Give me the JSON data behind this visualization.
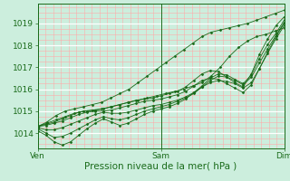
{
  "xlabel": "Pression niveau de la mer( hPa )",
  "bg_color": "#cceedd",
  "grid_color_major": "#ffffff",
  "grid_color_minor": "#ffaaaa",
  "line_color": "#1a6b1a",
  "xtick_labels": [
    "Ven",
    "Sam",
    "Dim"
  ],
  "xtick_positions": [
    0,
    48,
    96
  ],
  "ytick_positions": [
    1014,
    1015,
    1016,
    1017,
    1018,
    1019
  ],
  "ylim": [
    1013.3,
    1019.9
  ],
  "xlim": [
    0,
    96
  ],
  "series": [
    [
      1014.3,
      1014.5,
      1014.8,
      1015.0,
      1015.1,
      1015.2,
      1015.3,
      1015.4,
      1015.6,
      1015.8,
      1016.0,
      1016.3,
      1016.6,
      1016.9,
      1017.2,
      1017.5,
      1017.8,
      1018.1,
      1018.4,
      1018.6,
      1018.7,
      1018.8,
      1018.9,
      1019.0,
      1019.15,
      1019.3,
      1019.45,
      1019.6
    ],
    [
      1014.3,
      1014.45,
      1014.6,
      1014.75,
      1014.9,
      1015.0,
      1015.05,
      1015.1,
      1015.2,
      1015.3,
      1015.4,
      1015.5,
      1015.6,
      1015.7,
      1015.8,
      1015.9,
      1016.0,
      1016.15,
      1016.3,
      1016.6,
      1017.0,
      1017.5,
      1017.9,
      1018.2,
      1018.4,
      1018.5,
      1018.65,
      1018.8
    ],
    [
      1014.3,
      1014.4,
      1014.5,
      1014.65,
      1014.8,
      1014.95,
      1015.0,
      1015.05,
      1015.1,
      1015.2,
      1015.3,
      1015.4,
      1015.5,
      1015.55,
      1015.6,
      1015.7,
      1015.8,
      1015.9,
      1016.1,
      1016.4,
      1016.7,
      1016.85,
      1016.8,
      1016.55,
      1016.3,
      1016.1,
      1016.7,
      1017.6,
      1018.3,
      1018.9,
      1019.3
    ],
    [
      1014.3,
      1014.35,
      1014.45,
      1014.55,
      1014.7,
      1014.85,
      1014.95,
      1015.0,
      1015.0,
      1015.05,
      1015.15,
      1015.25,
      1015.35,
      1015.45,
      1015.5,
      1015.55,
      1015.65,
      1015.75,
      1015.9,
      1016.15,
      1016.4,
      1016.5,
      1016.45,
      1016.25,
      1016.05,
      1015.85,
      1016.2,
      1016.95,
      1017.7,
      1018.4,
      1019.0
    ],
    [
      1014.25,
      1014.15,
      1014.15,
      1014.25,
      1014.4,
      1014.55,
      1014.7,
      1014.85,
      1014.95,
      1014.9,
      1014.9,
      1014.95,
      1015.05,
      1015.15,
      1015.25,
      1015.3,
      1015.4,
      1015.5,
      1015.65,
      1015.85,
      1016.1,
      1016.3,
      1016.4,
      1016.35,
      1016.25,
      1016.05,
      1016.3,
      1016.95,
      1017.65,
      1018.3,
      1018.9
    ],
    [
      1014.2,
      1014.0,
      1013.8,
      1013.85,
      1014.0,
      1014.2,
      1014.4,
      1014.6,
      1014.75,
      1014.65,
      1014.6,
      1014.7,
      1014.85,
      1015.0,
      1015.1,
      1015.2,
      1015.3,
      1015.45,
      1015.6,
      1015.8,
      1016.1,
      1016.4,
      1016.6,
      1016.55,
      1016.4,
      1016.2,
      1016.55,
      1017.2,
      1017.85,
      1018.45,
      1019.05
    ],
    [
      1014.1,
      1013.9,
      1013.6,
      1013.45,
      1013.6,
      1013.9,
      1014.2,
      1014.45,
      1014.65,
      1014.5,
      1014.35,
      1014.45,
      1014.65,
      1014.85,
      1015.0,
      1015.1,
      1015.2,
      1015.35,
      1015.55,
      1015.85,
      1016.15,
      1016.5,
      1016.7,
      1016.65,
      1016.45,
      1016.25,
      1016.65,
      1017.4,
      1018.05,
      1018.55,
      1019.15
    ]
  ]
}
